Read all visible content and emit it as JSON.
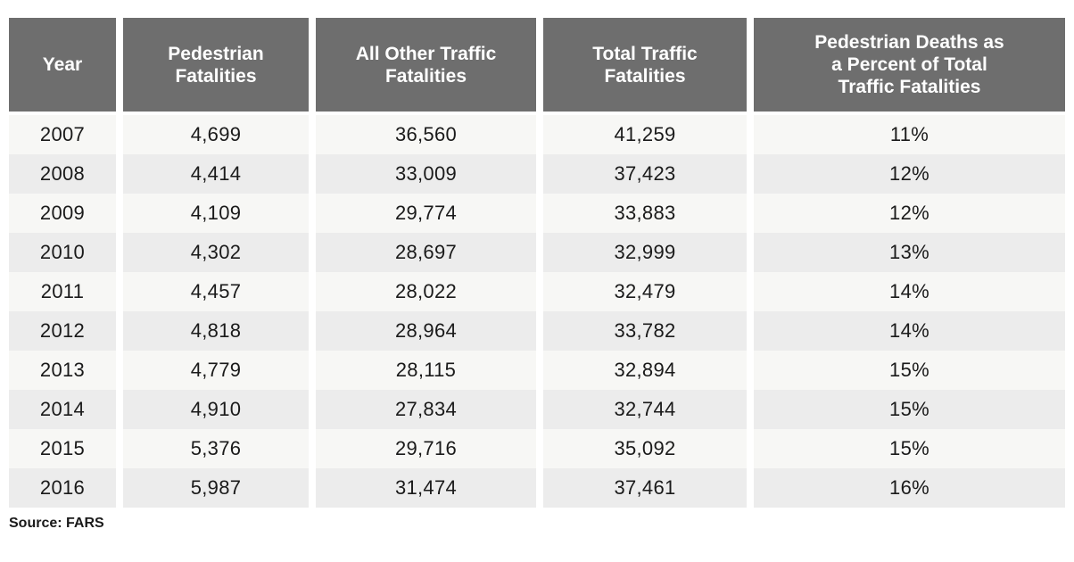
{
  "chart_data": {
    "type": "table",
    "columns": [
      "Year",
      "Pedestrian\nFatalities",
      "All Other Traffic\nFatalities",
      "Total Traffic\nFatalities",
      "Pedestrian Deaths as\na Percent of Total\nTraffic Fatalities"
    ],
    "rows": [
      [
        "2007",
        "4,699",
        "36,560",
        "41,259",
        "11%"
      ],
      [
        "2008",
        "4,414",
        "33,009",
        "37,423",
        "12%"
      ],
      [
        "2009",
        "4,109",
        "29,774",
        "33,883",
        "12%"
      ],
      [
        "2010",
        "4,302",
        "28,697",
        "32,999",
        "13%"
      ],
      [
        "2011",
        "4,457",
        "28,022",
        "32,479",
        "14%"
      ],
      [
        "2012",
        "4,818",
        "28,964",
        "33,782",
        "14%"
      ],
      [
        "2013",
        "4,779",
        "28,115",
        "32,894",
        "15%"
      ],
      [
        "2014",
        "4,910",
        "27,834",
        "32,744",
        "15%"
      ],
      [
        "2015",
        "5,376",
        "29,716",
        "35,092",
        "15%"
      ],
      [
        "2016",
        "5,987",
        "31,474",
        "37,461",
        "16%"
      ]
    ],
    "source": "Source: FARS"
  },
  "colors": {
    "header_bg": "#6e6e6e",
    "header_text": "#ffffff",
    "row_light": "#f7f7f5",
    "row_dark": "#ececec",
    "text": "#1a1a1a"
  }
}
